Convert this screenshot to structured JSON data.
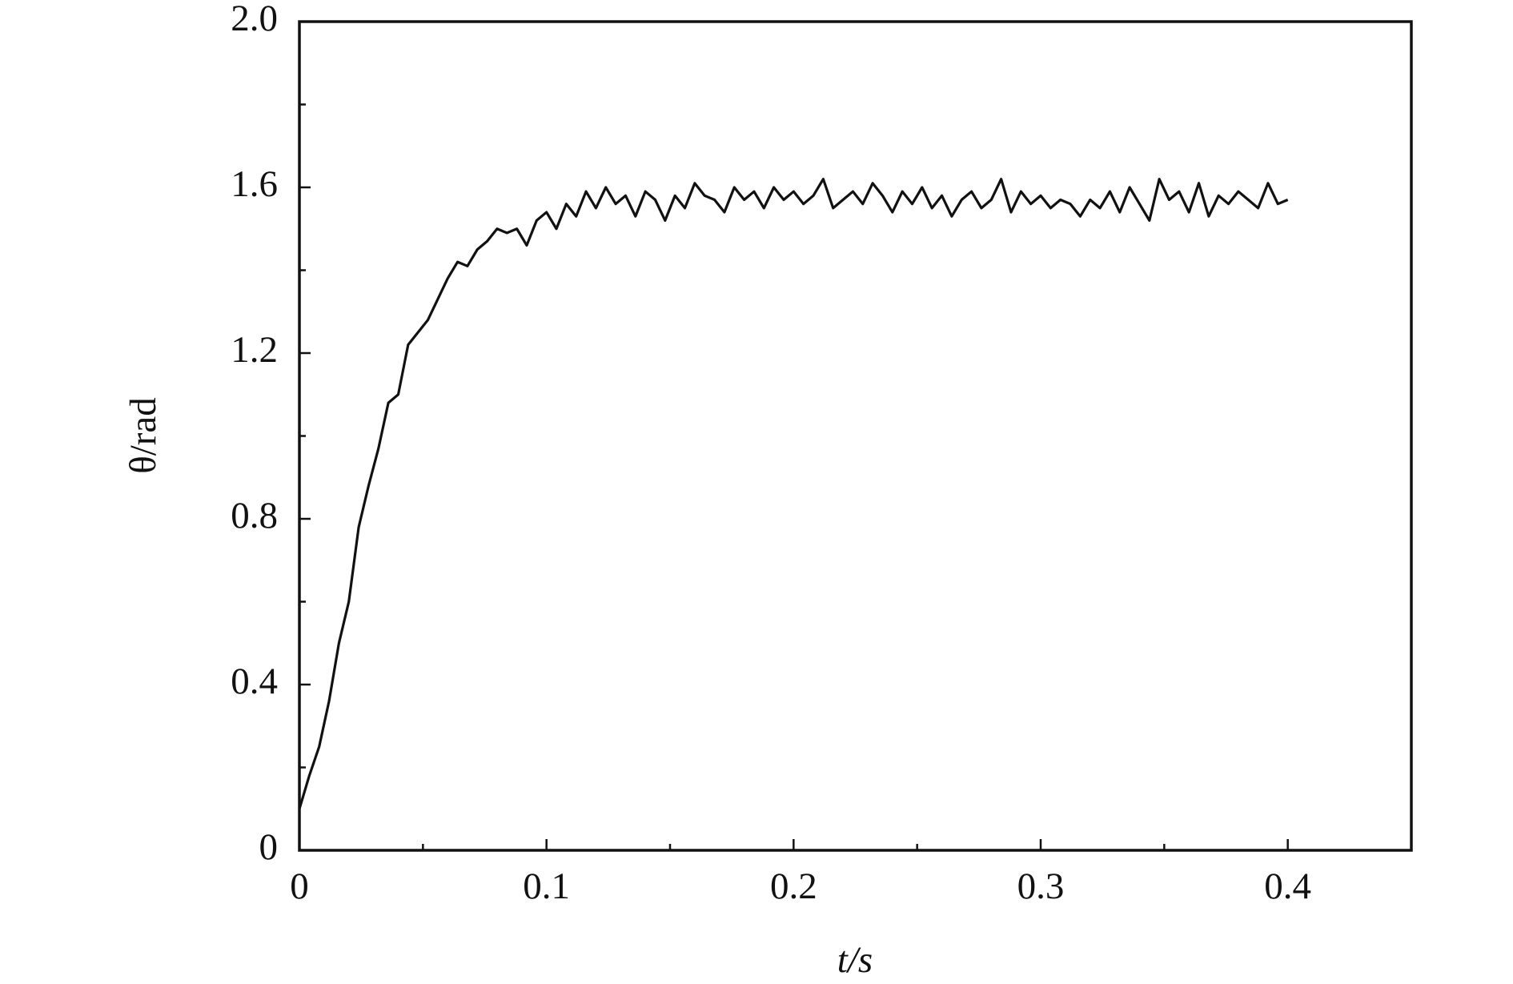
{
  "chart_data": {
    "type": "line",
    "xlabel": "t/s",
    "ylabel": "θ/rad",
    "x": [
      0,
      0.004,
      0.008,
      0.012,
      0.016,
      0.02,
      0.024,
      0.028,
      0.032,
      0.036,
      0.04,
      0.044,
      0.048,
      0.052,
      0.056,
      0.06,
      0.064,
      0.068,
      0.072,
      0.076,
      0.08,
      0.084,
      0.088,
      0.092,
      0.096,
      0.1,
      0.104,
      0.108,
      0.112,
      0.116,
      0.12,
      0.124,
      0.128,
      0.132,
      0.136,
      0.14,
      0.144,
      0.148,
      0.152,
      0.156,
      0.16,
      0.164,
      0.168,
      0.172,
      0.176,
      0.18,
      0.184,
      0.188,
      0.192,
      0.196,
      0.2,
      0.204,
      0.208,
      0.212,
      0.216,
      0.22,
      0.224,
      0.228,
      0.232,
      0.236,
      0.24,
      0.244,
      0.248,
      0.252,
      0.256,
      0.26,
      0.264,
      0.268,
      0.272,
      0.276,
      0.28,
      0.284,
      0.288,
      0.292,
      0.296,
      0.3,
      0.304,
      0.308,
      0.312,
      0.316,
      0.32,
      0.324,
      0.328,
      0.332,
      0.336,
      0.34,
      0.344,
      0.348,
      0.352,
      0.356,
      0.36,
      0.364,
      0.368,
      0.372,
      0.376,
      0.38,
      0.384,
      0.388,
      0.392,
      0.396,
      0.4
    ],
    "series": [
      {
        "color": "#111111",
        "values": [
          0.1,
          0.18,
          0.25,
          0.36,
          0.5,
          0.6,
          0.78,
          0.88,
          0.97,
          1.08,
          1.1,
          1.22,
          1.25,
          1.28,
          1.33,
          1.38,
          1.42,
          1.41,
          1.45,
          1.47,
          1.5,
          1.49,
          1.5,
          1.46,
          1.52,
          1.54,
          1.5,
          1.56,
          1.53,
          1.59,
          1.55,
          1.6,
          1.56,
          1.58,
          1.53,
          1.59,
          1.57,
          1.52,
          1.58,
          1.55,
          1.61,
          1.58,
          1.57,
          1.54,
          1.6,
          1.57,
          1.59,
          1.55,
          1.6,
          1.57,
          1.59,
          1.56,
          1.58,
          1.62,
          1.55,
          1.57,
          1.59,
          1.56,
          1.61,
          1.58,
          1.54,
          1.59,
          1.56,
          1.6,
          1.55,
          1.58,
          1.53,
          1.57,
          1.59,
          1.55,
          1.57,
          1.62,
          1.54,
          1.59,
          1.56,
          1.58,
          1.55,
          1.57,
          1.56,
          1.53,
          1.57,
          1.55,
          1.59,
          1.54,
          1.6,
          1.56,
          1.52,
          1.62,
          1.57,
          1.59,
          1.54,
          1.61,
          1.53,
          1.58,
          1.56,
          1.59,
          1.57,
          1.55,
          1.61,
          1.56,
          1.57
        ]
      }
    ],
    "xlim": [
      0,
      0.45
    ],
    "xticks": [
      0,
      0.1,
      0.2,
      0.3,
      0.4
    ],
    "xminorticks": [
      0.05,
      0.15,
      0.25,
      0.35
    ],
    "ylim": [
      0,
      2
    ],
    "yticks": [
      0,
      0.4,
      0.8,
      1.2,
      1.6,
      {
        "value": 2,
        "label": "2.0"
      }
    ],
    "yminorticks": [
      0.2,
      0.6,
      1.0,
      1.4,
      1.8
    ],
    "grid": false
  }
}
